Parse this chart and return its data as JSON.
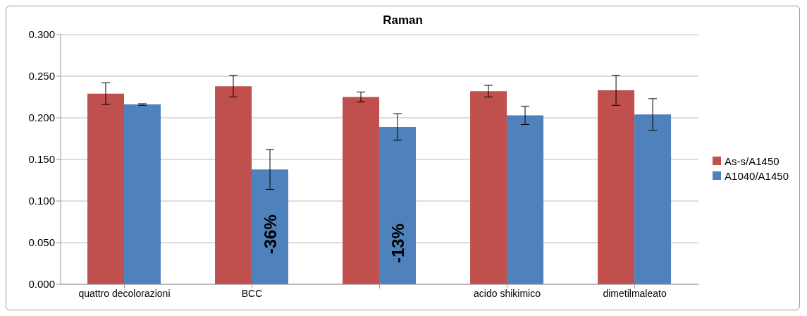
{
  "chart_data": {
    "type": "bar",
    "title": "Raman",
    "categories": [
      "quattro decolorazioni",
      "BCC",
      null,
      "acido shikimico",
      "dimetilmaleato"
    ],
    "series": [
      {
        "name": "As-s/A1450",
        "color": "#c0504d",
        "values": [
          0.229,
          0.238,
          0.225,
          0.232,
          0.233
        ],
        "errors": [
          0.013,
          0.013,
          0.006,
          0.007,
          0.018
        ]
      },
      {
        "name": "A1040/A1450",
        "color": "#4f81bd",
        "values": [
          0.216,
          0.138,
          0.189,
          0.203,
          0.204
        ],
        "errors": [
          0.001,
          0.024,
          0.016,
          0.011,
          0.019
        ]
      }
    ],
    "annotations": [
      {
        "text": "-36%",
        "x": "BCC",
        "y": 0.06
      },
      "-13%"
    ],
    "ylim": [
      0,
      0.3
    ],
    "yticks": [
      {
        "value": 0,
        "label": "0.000"
      },
      {
        "value": 0.05,
        "label": "0.050"
      },
      {
        "value": 0.1,
        "label": "0.100"
      },
      {
        "value": 0.15,
        "label": "0.150"
      },
      {
        "value": 0.2,
        "label": "0.200"
      },
      {
        "value": 0.25,
        "label": "0.250"
      },
      {
        "value": 0.3,
        "label": "0.300"
      }
    ],
    "grid": "y",
    "legend": "right"
  }
}
